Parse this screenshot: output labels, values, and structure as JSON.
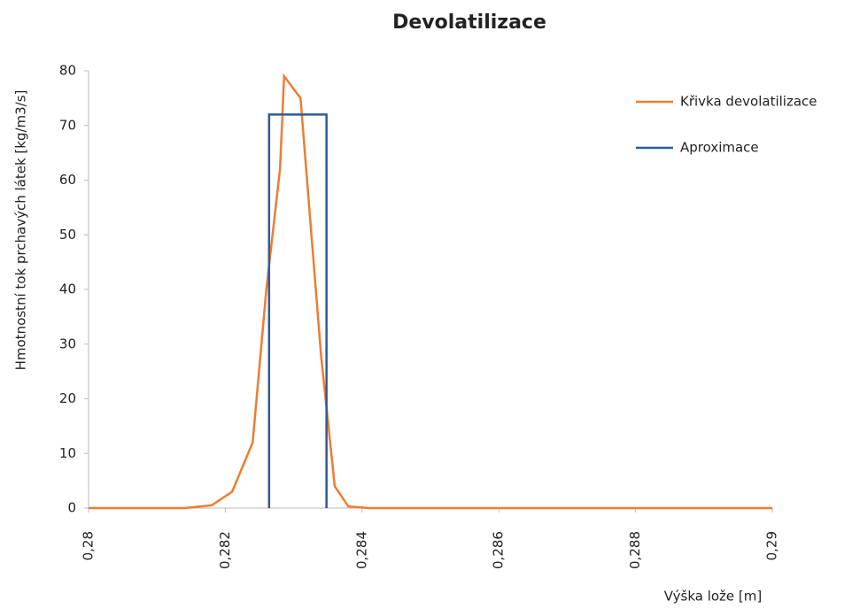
{
  "chart_data": {
    "type": "line",
    "title": "Devolatilizace",
    "xlabel": "Výška lože [m]",
    "ylabel": "Hmotnostní tok prchavých látek [kg/m3/s]",
    "series": [
      {
        "name": "Křivka devolatilizace",
        "color": "#ed7d31",
        "x": [
          0.28,
          0.2814,
          0.2818,
          0.2821,
          0.2824,
          0.2826,
          0.2828,
          0.28286,
          0.2831,
          0.2834,
          0.2836,
          0.2838,
          0.2841,
          0.29
        ],
        "values": [
          0,
          0,
          0.5,
          3,
          12,
          40,
          62,
          79,
          75,
          28,
          4,
          0.3,
          0,
          0
        ]
      },
      {
        "name": "Aproximace",
        "color": "#2e5b9a",
        "x": [
          0.28264,
          0.28264,
          0.28348,
          0.28348
        ],
        "values": [
          0,
          72,
          72,
          0
        ]
      }
    ],
    "xlim": [
      0.28,
      0.29
    ],
    "xticks": [
      {
        "value": 0.28,
        "label": "0,28"
      },
      {
        "value": 0.282,
        "label": "0,282"
      },
      {
        "value": 0.284,
        "label": "0,284"
      },
      {
        "value": 0.286,
        "label": "0,286"
      },
      {
        "value": 0.288,
        "label": "0,288"
      },
      {
        "value": 0.29,
        "label": "0,29"
      }
    ],
    "ylim": [
      0,
      80
    ],
    "yticks": [
      0,
      10,
      20,
      30,
      40,
      50,
      60,
      70,
      80
    ],
    "legend": "upper right"
  }
}
